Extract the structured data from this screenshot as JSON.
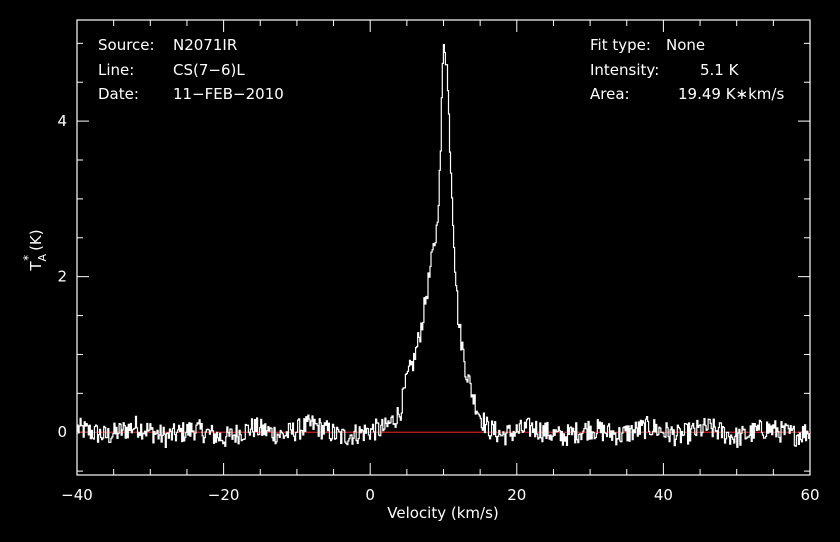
{
  "header": {
    "source_label": "Source:",
    "source_value": "N2071IR",
    "line_label": "Line:",
    "line_value": "CS(7−6)L",
    "date_label": "Date:",
    "date_value": "11−FEB−2010",
    "fit_label": "Fit type:",
    "fit_value": "None",
    "intensity_label": "Intensity:",
    "intensity_value": "5.1 K",
    "area_label": "Area:",
    "area_value": "19.49 K∗km/s"
  },
  "chart_data": {
    "type": "line",
    "title": "",
    "xlabel": "Velocity (km/s)",
    "ylabel": "T*A (K)",
    "xlim": [
      -40,
      60
    ],
    "ylim": [
      -0.55,
      5.3
    ],
    "x_ticks": [
      -40,
      -20,
      0,
      20,
      40,
      60
    ],
    "x_tick_labels": [
      "−40",
      "−20",
      "0",
      "20",
      "40",
      "60"
    ],
    "y_ticks": [
      0,
      2,
      4
    ],
    "y_tick_labels": [
      "0",
      "2",
      "4"
    ],
    "baseline": 0,
    "peak_intensity": 5.1,
    "spectrum": [
      [
        -40,
        0.05
      ],
      [
        -36,
        -0.05
      ],
      [
        -32,
        0.08
      ],
      [
        -28,
        -0.06
      ],
      [
        -24,
        0.04
      ],
      [
        -20,
        -0.08
      ],
      [
        -16,
        0.06
      ],
      [
        -12,
        -0.04
      ],
      [
        -8,
        0.1
      ],
      [
        -4,
        -0.06
      ],
      [
        0,
        0.02
      ],
      [
        2,
        0.05
      ],
      [
        4,
        0.25
      ],
      [
        5,
        0.7
      ],
      [
        6,
        0.95
      ],
      [
        7,
        1.4
      ],
      [
        8,
        2.0
      ],
      [
        9,
        2.6
      ],
      [
        9.5,
        3.4
      ],
      [
        9.8,
        4.6
      ],
      [
        10,
        5.1
      ],
      [
        10.4,
        4.7
      ],
      [
        11,
        3.3
      ],
      [
        11.5,
        2.2
      ],
      [
        12,
        1.4
      ],
      [
        13,
        0.8
      ],
      [
        14,
        0.45
      ],
      [
        15,
        0.2
      ],
      [
        16,
        0.05
      ],
      [
        18,
        -0.04
      ],
      [
        22,
        0.06
      ],
      [
        26,
        -0.06
      ],
      [
        30,
        0.05
      ],
      [
        34,
        -0.04
      ],
      [
        38,
        0.07
      ],
      [
        42,
        -0.05
      ],
      [
        46,
        0.06
      ],
      [
        50,
        -0.07
      ],
      [
        54,
        0.05
      ],
      [
        58,
        -0.04
      ],
      [
        60,
        0.02
      ]
    ],
    "grid": false,
    "colors": {
      "background": "#000000",
      "axes": "#ffffff",
      "spectrum": "#ffffff",
      "baseline": "#cc2222"
    }
  }
}
